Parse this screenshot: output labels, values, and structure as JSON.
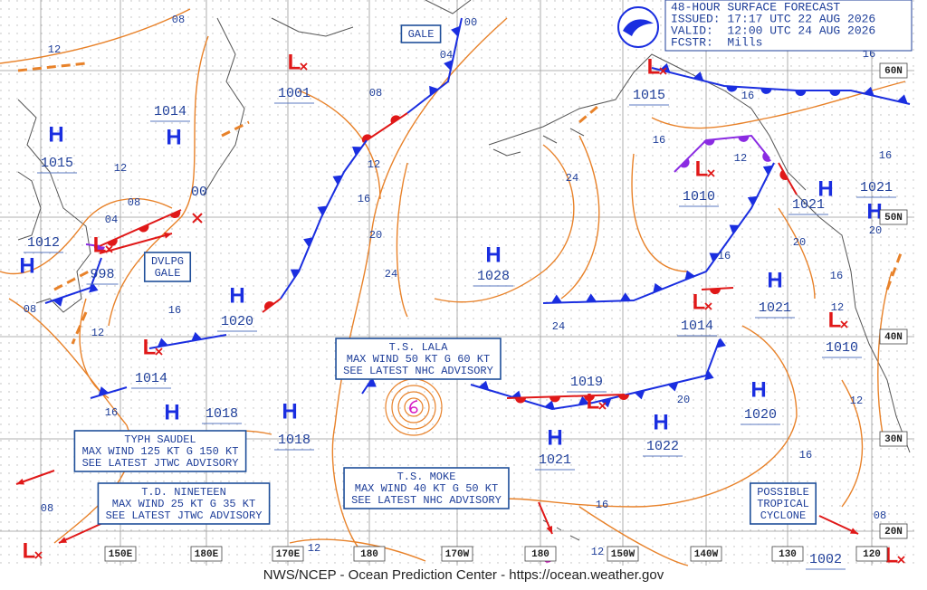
{
  "header": {
    "lines": [
      "48-HOUR SURFACE FORECAST",
      "ISSUED: 17:17 UTC 22 AUG 2026",
      "VALID:  12:00 UTC 24 AUG 2026",
      "FCSTR:  Mills"
    ]
  },
  "footer": "NWS/NCEP - Ocean Prediction Center - https://ocean.weather.gov",
  "pressure_centers": [
    {
      "type": "H",
      "pressure": "1015"
    },
    {
      "type": "H",
      "pressure": "1014"
    },
    {
      "type": "L",
      "pressure": "1001"
    },
    {
      "type": "L",
      "pressure": "998"
    },
    {
      "type": "H",
      "pressure": "1012"
    },
    {
      "type": "H",
      "pressure": "1020"
    },
    {
      "type": "L",
      "pressure": "1014"
    },
    {
      "type": "H",
      "pressure": "1018"
    },
    {
      "type": "H",
      "pressure": "1018"
    },
    {
      "type": "H",
      "pressure": "1028"
    },
    {
      "type": "L",
      "pressure": "1015"
    },
    {
      "type": "L",
      "pressure": "1010"
    },
    {
      "type": "H",
      "pressure": "1021"
    },
    {
      "type": "H",
      "pressure": "1021"
    },
    {
      "type": "H",
      "pressure": "1021"
    },
    {
      "type": "L",
      "pressure": "1014"
    },
    {
      "type": "L",
      "pressure": "1010"
    },
    {
      "type": "L",
      "pressure": "1019"
    },
    {
      "type": "H",
      "pressure": "1022"
    },
    {
      "type": "H",
      "pressure": "1021"
    },
    {
      "type": "H",
      "pressure": "1020"
    },
    {
      "type": "L",
      "pressure": "1002"
    },
    {
      "type": "L"
    }
  ],
  "isobar_labels": [
    "08",
    "12",
    "08",
    "12",
    "16",
    "20",
    "24",
    "04",
    "00",
    "16",
    "12",
    "16",
    "08",
    "24",
    "16",
    "12",
    "16",
    "16",
    "16",
    "20",
    "16",
    "12",
    "20",
    "16",
    "24",
    "20",
    "16",
    "12",
    "16",
    "12",
    "12",
    "08",
    "08",
    "08",
    "04",
    "12",
    "00"
  ],
  "latitude_labels": [
    "60N",
    "50N",
    "40N",
    "30N",
    "20N"
  ],
  "longitude_labels": [
    "150E",
    "180E",
    "170E",
    "180",
    "170W",
    "180",
    "150W",
    "140W",
    "130",
    "120"
  ],
  "advisories": [
    {
      "lines": [
        "GALE"
      ]
    },
    {
      "lines": [
        "DVLPG",
        "GALE"
      ]
    },
    {
      "lines": [
        "T.S. LALA",
        "MAX WIND 50 KT G 60 KT",
        "SEE LATEST NHC ADVISORY"
      ]
    },
    {
      "lines": [
        "TYPH SAUDEL",
        "MAX WIND 125 KT G 150 KT",
        "SEE LATEST JTWC ADVISORY"
      ]
    },
    {
      "lines": [
        "T.D. NINETEEN",
        "MAX WIND 25 KT G 35 KT",
        "SEE LATEST JTWC ADVISORY"
      ]
    },
    {
      "lines": [
        "T.S. MOKE",
        "MAX WIND 40 KT G 50 KT",
        "SEE LATEST NHC ADVISORY"
      ]
    },
    {
      "lines": [
        "POSSIBLE",
        "TROPICAL",
        "CYCLONE"
      ]
    }
  ]
}
